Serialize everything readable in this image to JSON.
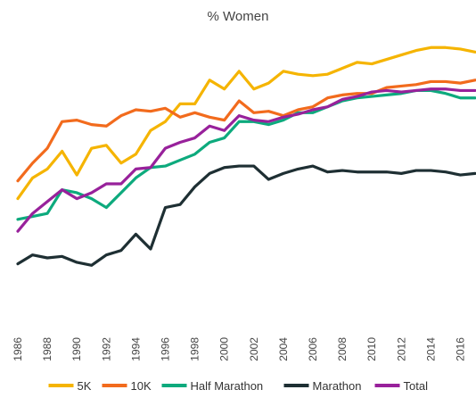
{
  "chart_data": {
    "type": "line",
    "title": "% Women",
    "xlabel": "",
    "ylabel": "",
    "x": [
      1986,
      1987,
      1988,
      1989,
      1990,
      1991,
      1992,
      1993,
      1994,
      1995,
      1996,
      1997,
      1998,
      1999,
      2000,
      2001,
      2002,
      2003,
      2004,
      2005,
      2006,
      2007,
      2008,
      2009,
      2010,
      2011,
      2012,
      2013,
      2014,
      2015,
      2016,
      2017
    ],
    "x_tick_labels": [
      "1986",
      "1988",
      "1990",
      "1992",
      "1994",
      "1996",
      "1998",
      "2000",
      "2002",
      "2004",
      "2006",
      "2008",
      "2010",
      "2012",
      "2014",
      "2016"
    ],
    "xlim": [
      1986,
      2017
    ],
    "ylim": [
      0,
      100
    ],
    "grid": false,
    "legend_position": "bottom",
    "series": [
      {
        "name": "5K",
        "color": "#F5B400",
        "values": [
          45,
          52,
          55,
          61,
          53,
          62,
          63,
          57,
          60,
          68,
          71,
          77,
          77,
          85,
          82,
          88,
          82,
          84,
          88,
          87,
          86.5,
          87,
          89,
          91,
          90.5,
          92,
          93.5,
          95,
          96,
          96,
          95.5,
          94.5
        ]
      },
      {
        "name": "10K",
        "color": "#F26B1D",
        "values": [
          51,
          57,
          62,
          71,
          71.5,
          70,
          69.5,
          73,
          75,
          74.5,
          75.5,
          72.5,
          74,
          72.5,
          71.5,
          78,
          74,
          74.5,
          73,
          75,
          76,
          79,
          80,
          80.5,
          80.5,
          82.5,
          83,
          83.5,
          84.5,
          84.5,
          84,
          85
        ]
      },
      {
        "name": "Half Marathon",
        "color": "#0DAA7D",
        "values": [
          38,
          39,
          40,
          48,
          47,
          45,
          42,
          47,
          52,
          55.5,
          56,
          58,
          60,
          64,
          65.5,
          71,
          71,
          70,
          71.5,
          74,
          74,
          76,
          78,
          79,
          79.5,
          80,
          80.5,
          81.5,
          81.5,
          80.5,
          79,
          79
        ]
      },
      {
        "name": "Marathon",
        "color": "#1E2F33",
        "values": [
          23,
          26,
          25,
          25.5,
          23.5,
          22.5,
          26,
          27.5,
          33,
          28,
          42,
          43,
          49,
          53.5,
          55.5,
          56,
          56,
          51.5,
          53.5,
          55,
          56,
          54,
          54.5,
          54,
          54,
          54,
          53.5,
          54.5,
          54.5,
          54,
          53,
          53.5
        ]
      },
      {
        "name": "Total",
        "color": "#98219B",
        "values": [
          34,
          40,
          44,
          48,
          45,
          47,
          50,
          50,
          55,
          55.5,
          62,
          64,
          65.5,
          69.5,
          68,
          73,
          71.5,
          71,
          72.5,
          73.5,
          75,
          76,
          78.5,
          79.5,
          81,
          81.5,
          81,
          81.5,
          82,
          82,
          81.5,
          81.5
        ]
      }
    ]
  }
}
